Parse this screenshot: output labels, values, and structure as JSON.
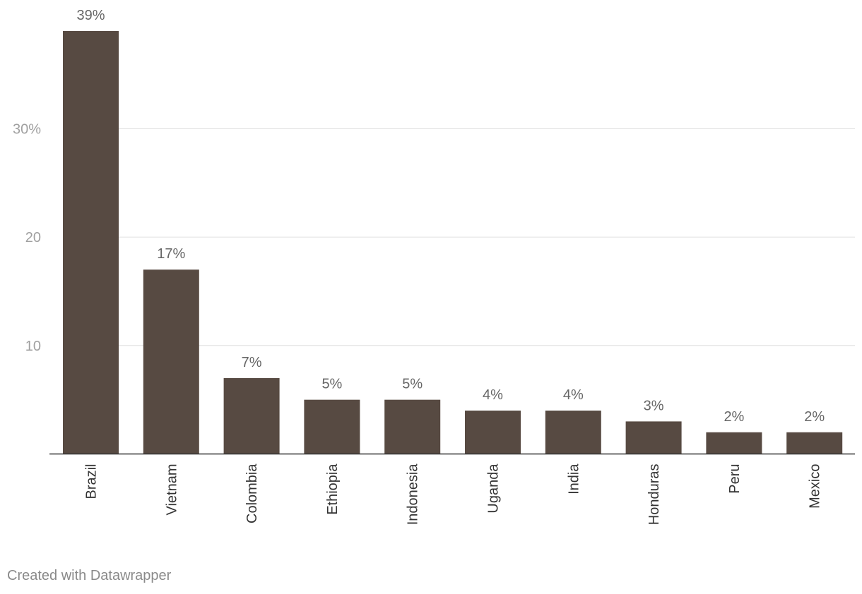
{
  "chart_data": {
    "type": "bar",
    "categories": [
      "Brazil",
      "Vietnam",
      "Colombia",
      "Ethiopia",
      "Indonesia",
      "Uganda",
      "India",
      "Honduras",
      "Peru",
      "Mexico"
    ],
    "values": [
      39,
      17,
      7,
      5,
      5,
      4,
      4,
      3,
      2,
      2
    ],
    "data_labels": [
      "39%",
      "17%",
      "7%",
      "5%",
      "5%",
      "4%",
      "4%",
      "3%",
      "2%",
      "2%"
    ],
    "y_ticks": [
      {
        "value": 10,
        "label": "10"
      },
      {
        "value": 20,
        "label": "20"
      },
      {
        "value": 30,
        "label": "30%"
      }
    ],
    "ylim": [
      0,
      39
    ],
    "title": "",
    "xlabel": "",
    "ylabel": "",
    "grid": true,
    "bar_color": "#574a42"
  },
  "footer": {
    "credit": "Created with Datawrapper"
  }
}
